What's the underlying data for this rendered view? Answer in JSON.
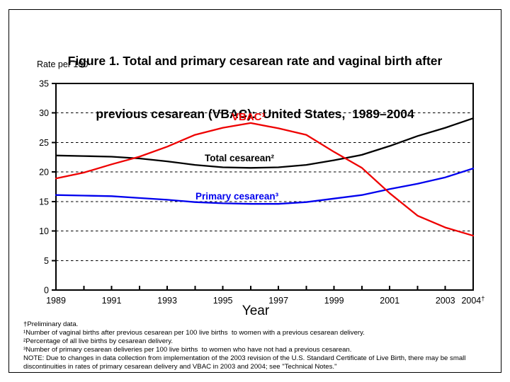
{
  "figure": {
    "title_line1": "Figure 1. Total and primary cesarean rate and vaginal birth after",
    "title_line2": "previous cesarean (VBAC):  United States,  1989–2004",
    "y_axis_unit_label": "Rate per 100",
    "x_axis_title": "Year"
  },
  "chart_data": {
    "type": "line",
    "title": "Figure 1. Total and primary cesarean rate and vaginal birth after previous cesarean (VBAC): United States, 1989–2004",
    "xlabel": "Year",
    "ylabel": "Rate per 100",
    "ylim": [
      0,
      35
    ],
    "ytick_values": [
      0,
      5,
      10,
      15,
      20,
      25,
      30,
      35
    ],
    "grid": "horizontal-dashed",
    "x": [
      1989,
      1990,
      1991,
      1992,
      1993,
      1994,
      1995,
      1996,
      1997,
      1998,
      1999,
      2000,
      2001,
      2002,
      2003,
      2004
    ],
    "xticks": [
      {
        "label": "1989",
        "value": 1989
      },
      {
        "label": "1991",
        "value": 1991
      },
      {
        "label": "1993",
        "value": 1993
      },
      {
        "label": "1995",
        "value": 1995
      },
      {
        "label": "1997",
        "value": 1997
      },
      {
        "label": "1999",
        "value": 1999
      },
      {
        "label": "2001",
        "value": 2001
      },
      {
        "label": "2003",
        "value": 2003
      },
      {
        "label": "2004†",
        "value": 2004
      }
    ],
    "series": [
      {
        "name": "Total cesarean",
        "annotation": "Total cesarean²",
        "color": "#000000",
        "values": [
          22.8,
          22.7,
          22.6,
          22.3,
          21.8,
          21.2,
          20.8,
          20.7,
          20.8,
          21.2,
          22.0,
          22.9,
          24.4,
          26.1,
          27.5,
          29.1
        ]
      },
      {
        "name": "Primary cesarean",
        "annotation": "Primary cesarean³",
        "color": "#0000ee",
        "values": [
          16.1,
          16.0,
          15.9,
          15.6,
          15.3,
          14.9,
          14.7,
          14.6,
          14.6,
          14.9,
          15.5,
          16.1,
          17.1,
          18.0,
          19.1,
          20.6
        ]
      },
      {
        "name": "VBAC",
        "annotation": "VBAC¹",
        "color": "#ee0000",
        "values": [
          18.9,
          19.9,
          21.3,
          22.6,
          24.3,
          26.3,
          27.5,
          28.3,
          27.4,
          26.3,
          23.4,
          20.7,
          16.4,
          12.6,
          10.6,
          9.2
        ]
      }
    ]
  },
  "footnotes": {
    "lines": [
      "†Preliminary data.",
      "¹Number of vaginal births after previous cesarean per 100 live births  to women with a previous cesarean delivery.",
      "²Percentage of all live births by cesarean delivery.",
      "³Number of primary cesarean deliveries per 100 live births  to women who have not had a previous cesarean.",
      "NOTE: Due to changes in data collection from implementation of the 2003 revision of the U.S. Standard Certificate of Live Birth, there may be small",
      "discontinuities in rates of primary cesarean delivery and VBAC in 2003 and 2004; see \"Technical Notes.\""
    ]
  }
}
